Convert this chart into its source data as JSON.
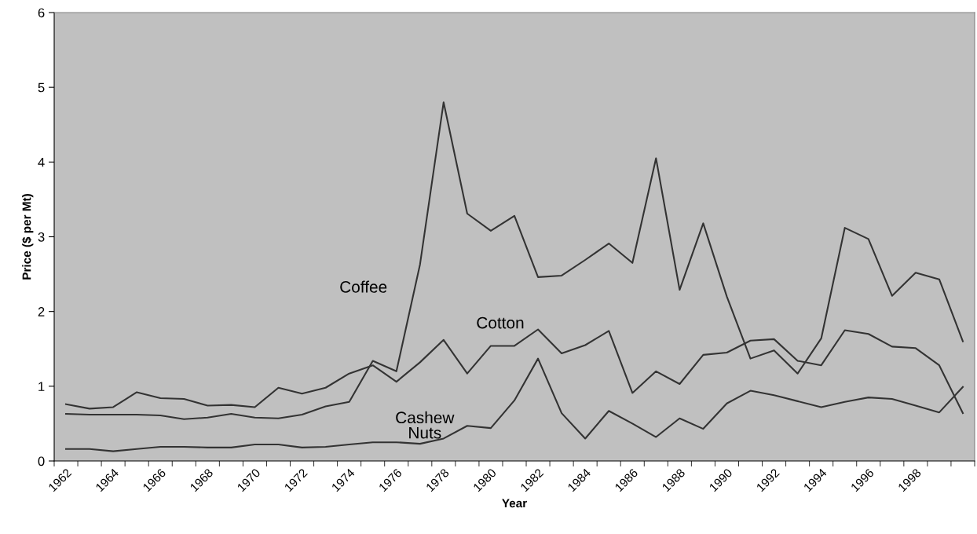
{
  "chart_data": {
    "type": "line",
    "xlabel": "Year",
    "ylabel": "Price ($ per Mt)",
    "categories": [
      "1962",
      null,
      "1964",
      null,
      "1966",
      null,
      "1968",
      null,
      "1970",
      null,
      "1972",
      null,
      "1974",
      null,
      "1976",
      null,
      "1978",
      null,
      "1980",
      null,
      "1982",
      null,
      "1984",
      null,
      "1986",
      null,
      "1988",
      null,
      "1990",
      null,
      "1992",
      null,
      "1994",
      null,
      "1996",
      null,
      "1998",
      null,
      null
    ],
    "series": [
      {
        "name": "Coffee",
        "color": "#333333",
        "values": [
          0.63,
          0.62,
          0.62,
          0.62,
          0.61,
          0.56,
          0.58,
          0.63,
          0.58,
          0.57,
          0.62,
          0.73,
          0.79,
          1.34,
          1.2,
          2.63,
          4.8,
          3.31,
          3.08,
          3.28,
          2.46,
          2.48,
          2.69,
          2.91,
          2.65,
          4.05,
          2.29,
          3.18,
          2.2,
          1.37,
          1.48,
          1.17,
          1.64,
          3.12,
          2.97,
          2.21,
          2.52,
          2.43,
          1.6
        ]
      },
      {
        "name": "Cotton",
        "color": "#333333",
        "values": [
          0.76,
          0.7,
          0.72,
          0.92,
          0.84,
          0.83,
          0.74,
          0.75,
          0.72,
          0.98,
          0.9,
          0.98,
          1.17,
          1.28,
          1.06,
          1.32,
          1.62,
          1.17,
          1.54,
          1.54,
          1.76,
          1.44,
          1.55,
          1.74,
          0.91,
          1.2,
          1.03,
          1.42,
          1.45,
          1.61,
          1.63,
          1.34,
          1.28,
          1.75,
          1.7,
          1.53,
          1.51,
          1.28,
          0.64
        ]
      },
      {
        "name": "Cashew Nuts",
        "color": "#333333",
        "values": [
          0.16,
          0.16,
          0.13,
          0.16,
          0.19,
          0.19,
          0.18,
          0.18,
          0.22,
          0.22,
          0.18,
          0.19,
          0.22,
          0.25,
          0.25,
          0.23,
          0.3,
          0.47,
          0.44,
          0.81,
          1.37,
          0.64,
          0.3,
          0.67,
          0.5,
          0.32,
          0.57,
          0.43,
          0.77,
          0.94,
          0.88,
          0.8,
          0.72,
          0.79,
          0.85,
          0.83,
          0.74,
          0.65,
          0.99
        ]
      }
    ],
    "ylim": [
      0,
      6
    ],
    "yticks": [
      0,
      1,
      2,
      3,
      4,
      5,
      6
    ],
    "grid": false,
    "legend": false,
    "marker": "none",
    "line_style": "solid"
  }
}
